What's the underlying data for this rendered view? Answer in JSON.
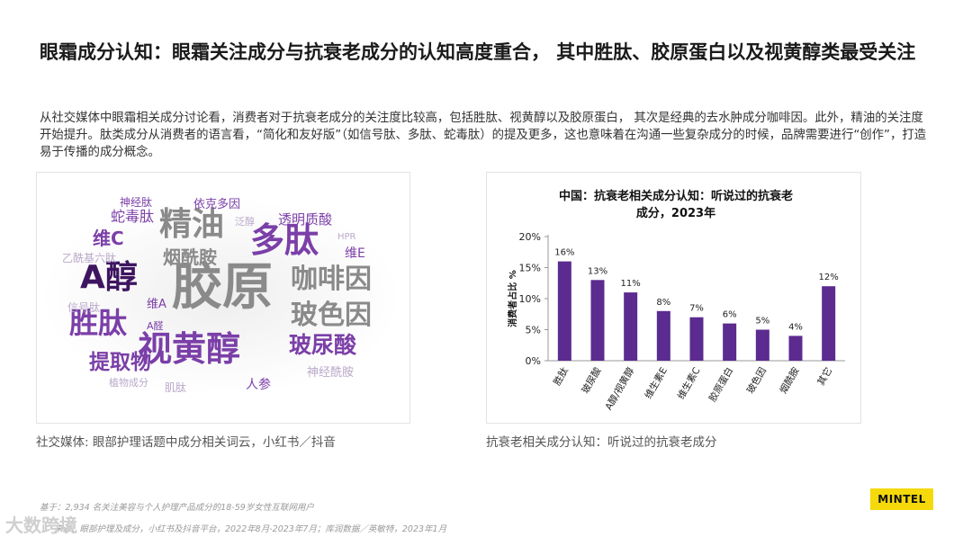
{
  "title": "眼霜成分认知：眼霜关注成分与抗衰老成分的认知高度重合， 其中胜肽、胶原蛋白以及视黄醇类最受关注",
  "intro": "从社交媒体中眼霜相关成分讨论看，消费者对于抗衰老成分的关注度比较高，包括胜肽、视黄醇以及胶原蛋白， 其次是经典的去水肿成分咖啡因。此外，精油的关注度开始提升。肽类成分从消费者的语言看，“简化和友好版”（如信号肽、多肽、蛇毒肽）的提及更多，这也意味着在沟通一些复杂成分的时候，品牌需要进行“创作”，打造易于传播的成分概念。",
  "word_cloud": {
    "words": [
      {
        "text": "胶原",
        "tone": "gray",
        "size": 56
      },
      {
        "text": "视黄醇",
        "tone": "purple",
        "size": 38
      },
      {
        "text": "A醇",
        "tone": "dark",
        "size": 36
      },
      {
        "text": "多肽",
        "tone": "purple",
        "size": 38
      },
      {
        "text": "精油",
        "tone": "gray",
        "size": 36
      },
      {
        "text": "胜肽",
        "tone": "purple",
        "size": 32
      },
      {
        "text": "咖啡因",
        "tone": "gray",
        "size": 30
      },
      {
        "text": "玻色因",
        "tone": "gray",
        "size": 30
      },
      {
        "text": "玻尿酸",
        "tone": "purple",
        "size": 25
      },
      {
        "text": "提取物",
        "tone": "purple",
        "size": 23
      },
      {
        "text": "烟酰胺",
        "tone": "gray",
        "size": 20
      },
      {
        "text": "维C",
        "tone": "purple",
        "size": 20
      },
      {
        "text": "蛇毒肽",
        "tone": "purple",
        "size": 16
      },
      {
        "text": "透明质酸",
        "tone": "purple",
        "size": 15
      },
      {
        "text": "依克多因",
        "tone": "purple",
        "size": 13
      },
      {
        "text": "神经肽",
        "tone": "purple",
        "size": 12
      },
      {
        "text": "泛醇",
        "tone": "light",
        "size": 11
      },
      {
        "text": "HPR",
        "tone": "light",
        "size": 10
      },
      {
        "text": "维E",
        "tone": "purple",
        "size": 14
      },
      {
        "text": "乙酰基六肽",
        "tone": "light",
        "size": 12
      },
      {
        "text": "信号肽",
        "tone": "light",
        "size": 12
      },
      {
        "text": "维A",
        "tone": "purple",
        "size": 13
      },
      {
        "text": "A醛",
        "tone": "purple",
        "size": 11
      },
      {
        "text": "神经酰胺",
        "tone": "light",
        "size": 13
      },
      {
        "text": "人参",
        "tone": "purple",
        "size": 14
      },
      {
        "text": "植物成分",
        "tone": "light",
        "size": 11
      },
      {
        "text": "肌肽",
        "tone": "light",
        "size": 12
      }
    ]
  },
  "caption_left": "社交媒体: 眼部护理话题中成分相关词云，小红书／抖音",
  "caption_right": "抗衰老相关成分认知：听说过的抗衰老成分",
  "note_base": "基于：2,934 名关注美容与个人护理产品成分的18-59岁女性互联网用户",
  "note_source": "来源：眼部护理及成分，小红书及抖音平台，2022年8月-2023年7月；库润数据／英敏特，2023年1月",
  "logo_text": "MINTEL",
  "watermark": "大数跨境",
  "colors": {
    "bar": "#5b2b8f",
    "purple": "#7b3fa8",
    "dark": "#3d1560",
    "gray": "#8a8a8a",
    "light": "#b9a9c9"
  },
  "chart_data": {
    "type": "bar",
    "title": "中国：抗衰老相关成分认知：听说过的抗衰老成分，2023年",
    "ylabel": "消费者占比 %",
    "xlabel": "",
    "categories": [
      "胜肽",
      "玻尿酸",
      "A醇/视黄醇",
      "维生素E",
      "维生素C",
      "胶原蛋白",
      "玻色因",
      "烟酰胺",
      "其它"
    ],
    "values": [
      16,
      13,
      11,
      8,
      7,
      6,
      5,
      4,
      12
    ],
    "data_labels": [
      "16%",
      "13%",
      "11%",
      "8%",
      "7%",
      "6%",
      "5%",
      "4%",
      "12%"
    ],
    "yticks": [
      "0%",
      "5%",
      "10%",
      "15%",
      "20%"
    ],
    "ylim": [
      0,
      20
    ],
    "grid": false,
    "legend": "none"
  }
}
